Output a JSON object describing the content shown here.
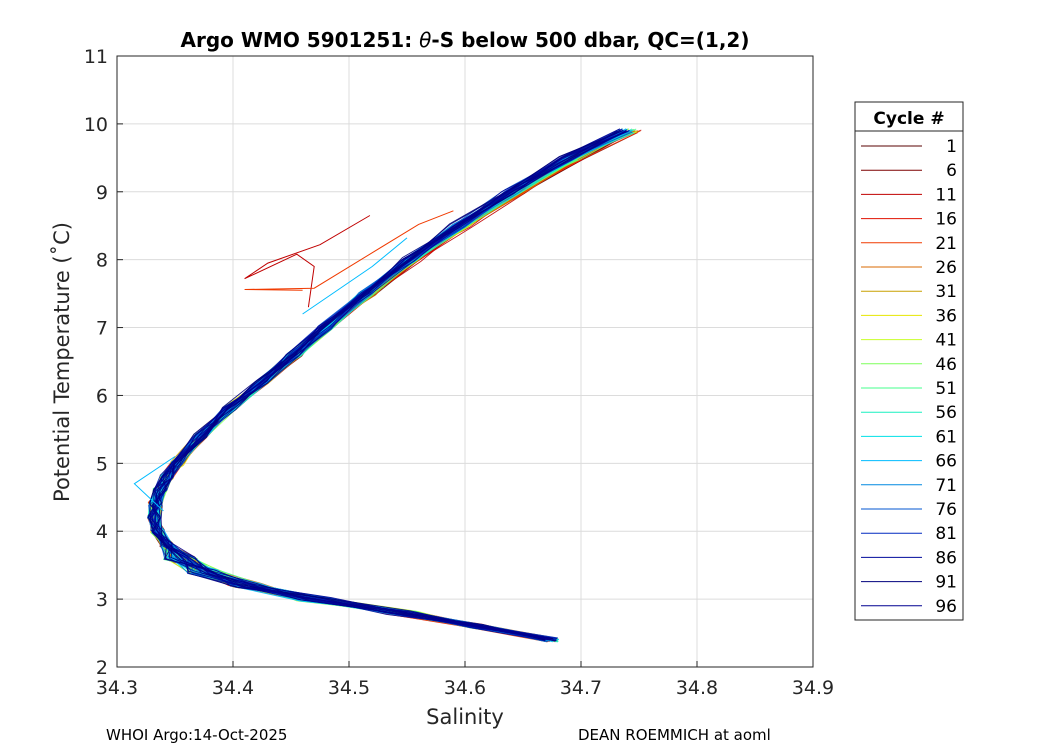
{
  "chart_data": {
    "type": "line",
    "title_main": "Argo WMO 5901251: ",
    "title_theta": "θ",
    "title_rest": "-S below 500 dbar,  QC=(1,2)",
    "xlabel": "Salinity",
    "ylabel": "Potential Temperature (˚C)",
    "xlim": [
      34.3,
      34.9
    ],
    "ylim": [
      2,
      11
    ],
    "xticks": [
      "34.3",
      "34.4",
      "34.5",
      "34.6",
      "34.7",
      "34.8",
      "34.9"
    ],
    "yticks": [
      "2",
      "3",
      "4",
      "5",
      "6",
      "7",
      "8",
      "9",
      "10",
      "11"
    ],
    "grid": true,
    "legend": {
      "title": "Cycle #",
      "placement": "right outside",
      "entries": [
        "1",
        "6",
        "11",
        "16",
        "21",
        "26",
        "31",
        "36",
        "41",
        "46",
        "51",
        "56",
        "61",
        "66",
        "71",
        "76",
        "81",
        "86",
        "91",
        "96"
      ],
      "colors": [
        "#5a0000",
        "#7d0000",
        "#c00000",
        "#e01000",
        "#f03a00",
        "#d86a00",
        "#c8a000",
        "#e6e600",
        "#c8ff28",
        "#7dff5a",
        "#44ff8c",
        "#18f0c0",
        "#00e0e6",
        "#00bcff",
        "#0088e0",
        "#0055d0",
        "#0028c0",
        "#000a9c",
        "#00007d",
        "#000090"
      ]
    },
    "reference_profile": {
      "theta": [
        2.4,
        2.6,
        2.8,
        3.0,
        3.2,
        3.4,
        3.6,
        3.8,
        4.0,
        4.2,
        4.4,
        4.6,
        4.8,
        5.0,
        5.4,
        5.8,
        6.2,
        6.6,
        7.0,
        7.5,
        8.0,
        8.5,
        9.0,
        9.5,
        9.9
      ],
      "salinity": [
        34.675,
        34.61,
        34.545,
        34.47,
        34.41,
        34.375,
        34.355,
        34.343,
        34.335,
        34.332,
        34.333,
        34.337,
        34.343,
        34.352,
        34.372,
        34.397,
        34.425,
        34.452,
        34.48,
        34.515,
        34.553,
        34.595,
        34.64,
        34.69,
        34.74
      ]
    },
    "outlier_segments": [
      {
        "cycle": "11",
        "salinity": [
          34.465,
          34.47,
          34.455,
          34.41,
          34.43,
          34.475,
          34.518
        ],
        "theta": [
          7.3,
          7.9,
          8.08,
          7.72,
          7.95,
          8.22,
          8.65
        ]
      },
      {
        "cycle": "21",
        "salinity": [
          34.46,
          34.41,
          34.47,
          34.56,
          34.59
        ],
        "theta": [
          7.55,
          7.56,
          7.58,
          8.52,
          8.72
        ]
      },
      {
        "cycle": "66",
        "salinity": [
          34.46,
          34.52,
          34.55
        ],
        "theta": [
          7.2,
          7.9,
          8.32
        ]
      },
      {
        "cycle": "66",
        "salinity": [
          34.35,
          34.315,
          34.34
        ],
        "theta": [
          5.1,
          4.7,
          4.3
        ]
      }
    ]
  },
  "footer": {
    "left": "WHOI Argo:14-Oct-2025",
    "right": "DEAN ROEMMICH at aoml"
  }
}
